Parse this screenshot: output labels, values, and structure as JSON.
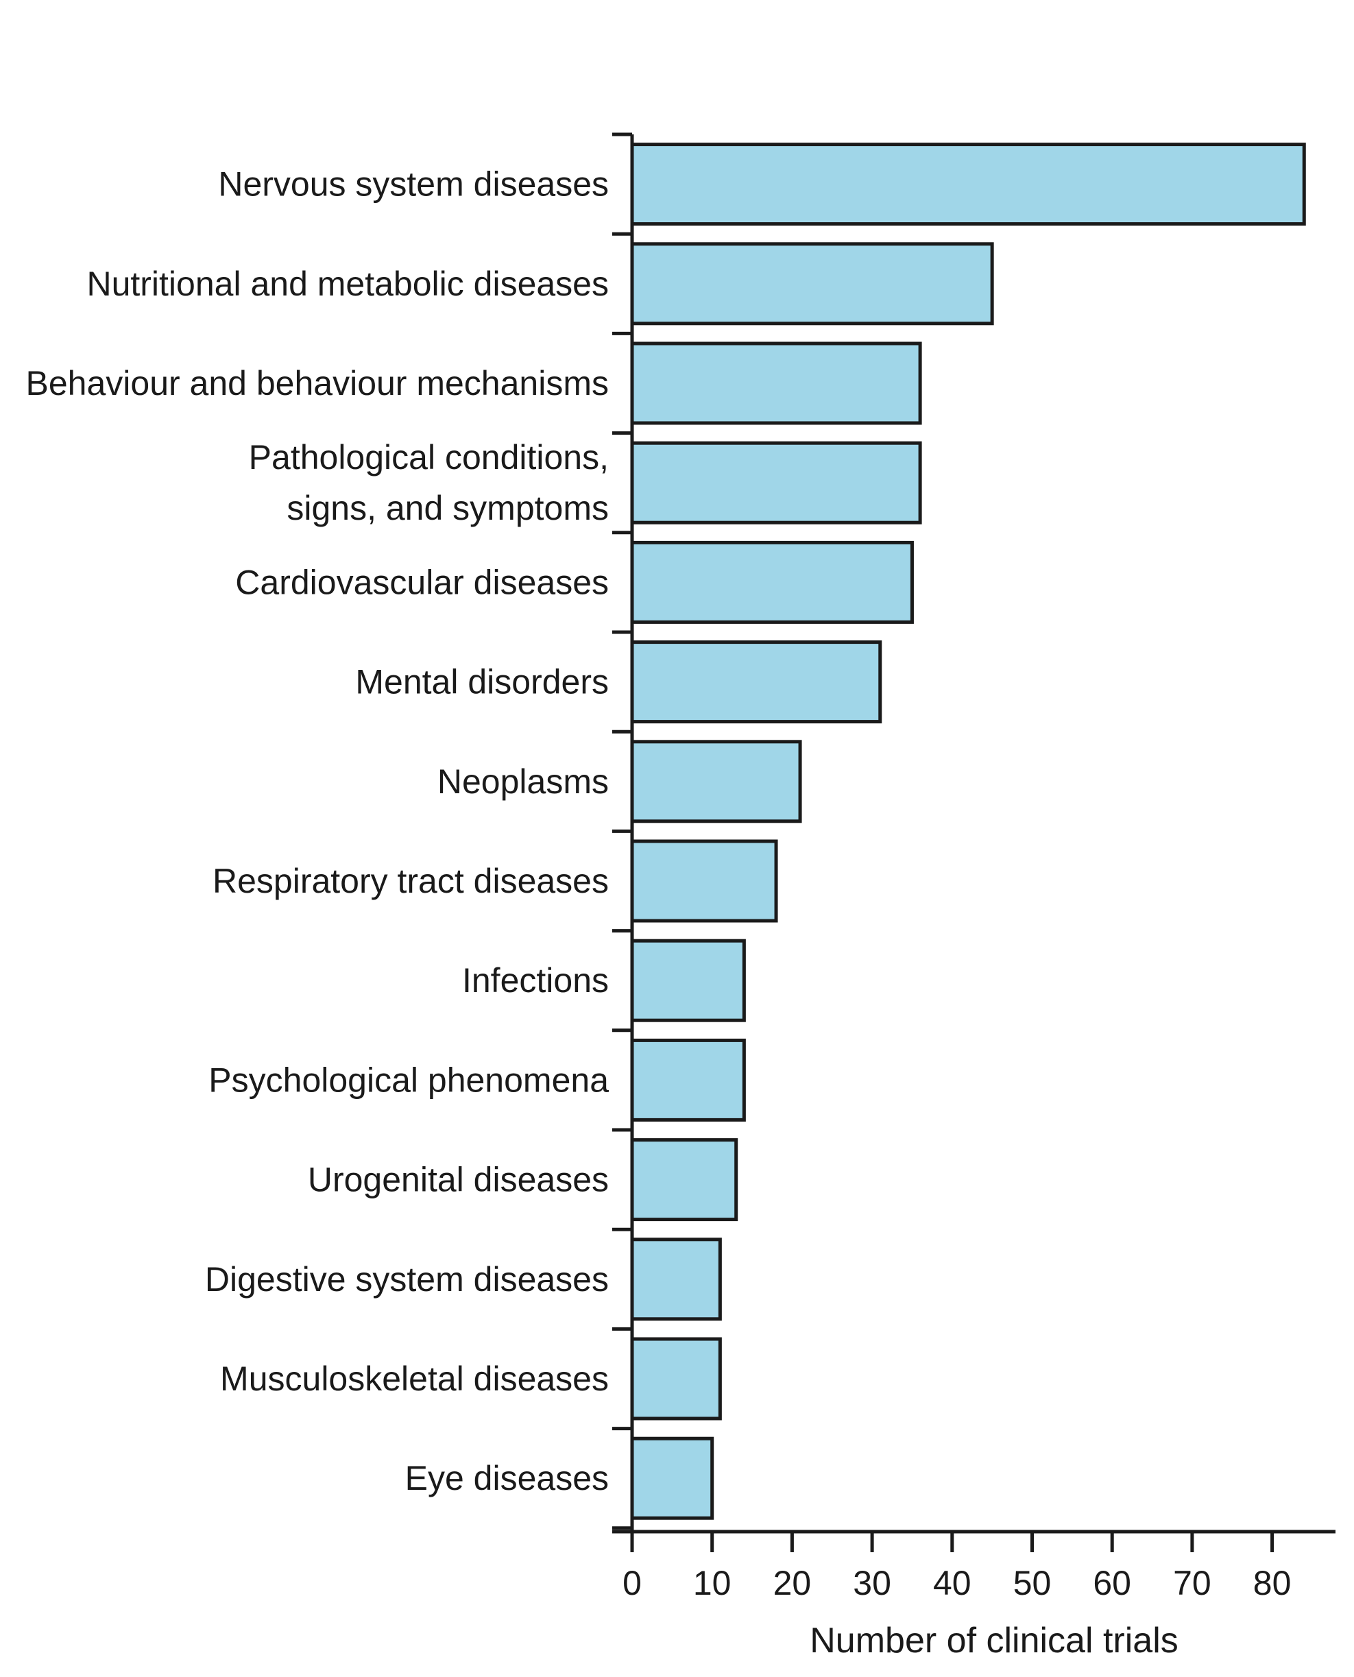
{
  "chart_data": {
    "type": "bar",
    "orientation": "horizontal",
    "categories": [
      "Nervous system diseases",
      "Nutritional and metabolic diseases",
      "Behaviour and behaviour mechanisms",
      "Pathological conditions, signs, and symptoms",
      "Cardiovascular diseases",
      "Mental disorders",
      "Neoplasms",
      "Respiratory tract diseases",
      "Infections",
      "Psychological phenomena",
      "Urogenital diseases",
      "Digestive system diseases",
      "Musculoskeletal diseases",
      "Eye diseases"
    ],
    "label_lines": [
      [
        "Nervous system diseases"
      ],
      [
        "Nutritional and metabolic diseases"
      ],
      [
        "Behaviour and behaviour mechanisms"
      ],
      [
        "Pathological conditions,",
        "signs, and symptoms"
      ],
      [
        "Cardiovascular diseases"
      ],
      [
        "Mental disorders"
      ],
      [
        "Neoplasms"
      ],
      [
        "Respiratory tract diseases"
      ],
      [
        "Infections"
      ],
      [
        "Psychological phenomena"
      ],
      [
        "Urogenital diseases"
      ],
      [
        "Digestive system diseases"
      ],
      [
        "Musculoskeletal diseases"
      ],
      [
        "Eye diseases"
      ]
    ],
    "values": [
      84,
      45,
      36,
      36,
      35,
      31,
      21,
      18,
      14,
      14,
      13,
      11,
      11,
      10
    ],
    "xlabel": "Number of clinical trials",
    "xticks": [
      0,
      10,
      20,
      30,
      40,
      50,
      60,
      70,
      80
    ],
    "xlim": [
      0,
      88
    ],
    "grid": false,
    "colors": {
      "bar_fill": "#a0d6e8",
      "bar_stroke": "#1a1a1a",
      "axis": "#1a1a1a"
    }
  }
}
